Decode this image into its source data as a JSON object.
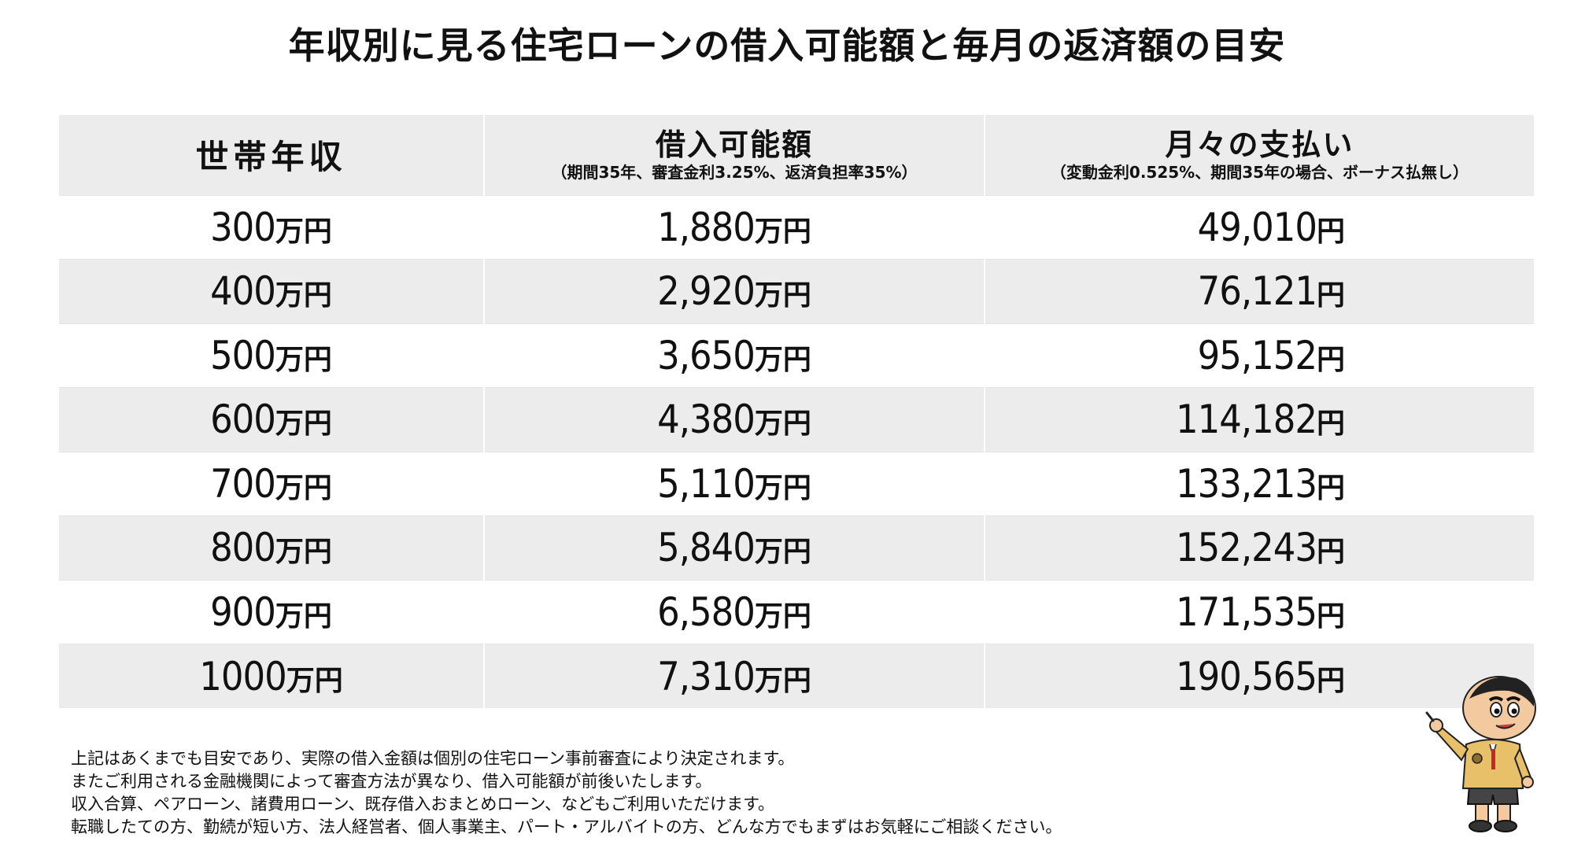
{
  "title": "年収別に見る住宅ローンの借入可能額と毎月の返済額の目安",
  "table": {
    "headers": [
      {
        "main": "世帯年収",
        "sub": ""
      },
      {
        "main": "借入可能額",
        "sub": "（期間35年、審査金利3.25%、返済負担率35%）"
      },
      {
        "main": "月々の支払い",
        "sub": "（変動金利0.525%、期間35年の場合、ボーナス払無し）"
      }
    ],
    "rows": [
      {
        "income": "300",
        "income_unit": "万円",
        "loan": "1,880",
        "loan_unit": "万円",
        "monthly": "49,010",
        "monthly_unit": "円"
      },
      {
        "income": "400",
        "income_unit": "万円",
        "loan": "2,920",
        "loan_unit": "万円",
        "monthly": "76,121",
        "monthly_unit": "円"
      },
      {
        "income": "500",
        "income_unit": "万円",
        "loan": "3,650",
        "loan_unit": "万円",
        "monthly": "95,152",
        "monthly_unit": "円"
      },
      {
        "income": "600",
        "income_unit": "万円",
        "loan": "4,380",
        "loan_unit": "万円",
        "monthly": "114,182",
        "monthly_unit": "円"
      },
      {
        "income": "700",
        "income_unit": "万円",
        "loan": "5,110",
        "loan_unit": "万円",
        "monthly": "133,213",
        "monthly_unit": "円"
      },
      {
        "income": "800",
        "income_unit": "万円",
        "loan": "5,840",
        "loan_unit": "万円",
        "monthly": "152,243",
        "monthly_unit": "円"
      },
      {
        "income": "900",
        "income_unit": "万円",
        "loan": "6,580",
        "loan_unit": "万円",
        "monthly": "171,535",
        "monthly_unit": "円"
      },
      {
        "income": "1000",
        "income_unit": "万円",
        "loan": "7,310",
        "loan_unit": "万円",
        "monthly": "190,565",
        "monthly_unit": "円"
      }
    ]
  },
  "notes": [
    "上記はあくまでも目安であり、実際の借入金額は個別の住宅ローン事前審査により決定されます。",
    "またご利用される金融機関によって審査方法が異なり、借入可能額が前後いたします。",
    "収入合算、ペアローン、諸費用ローン、既存借入おまとめローン、などもご利用いただけます。",
    "転職したての方、勤続が短い方、法人経営者、個人事業主、パート・アルバイトの方、どんな方でもまずはお気軽にご相談ください。"
  ],
  "colors": {
    "header_bg": "#ececec",
    "row_alt_bg": "#ececec"
  },
  "mascot_icon": "cartoon-boy-pointing"
}
